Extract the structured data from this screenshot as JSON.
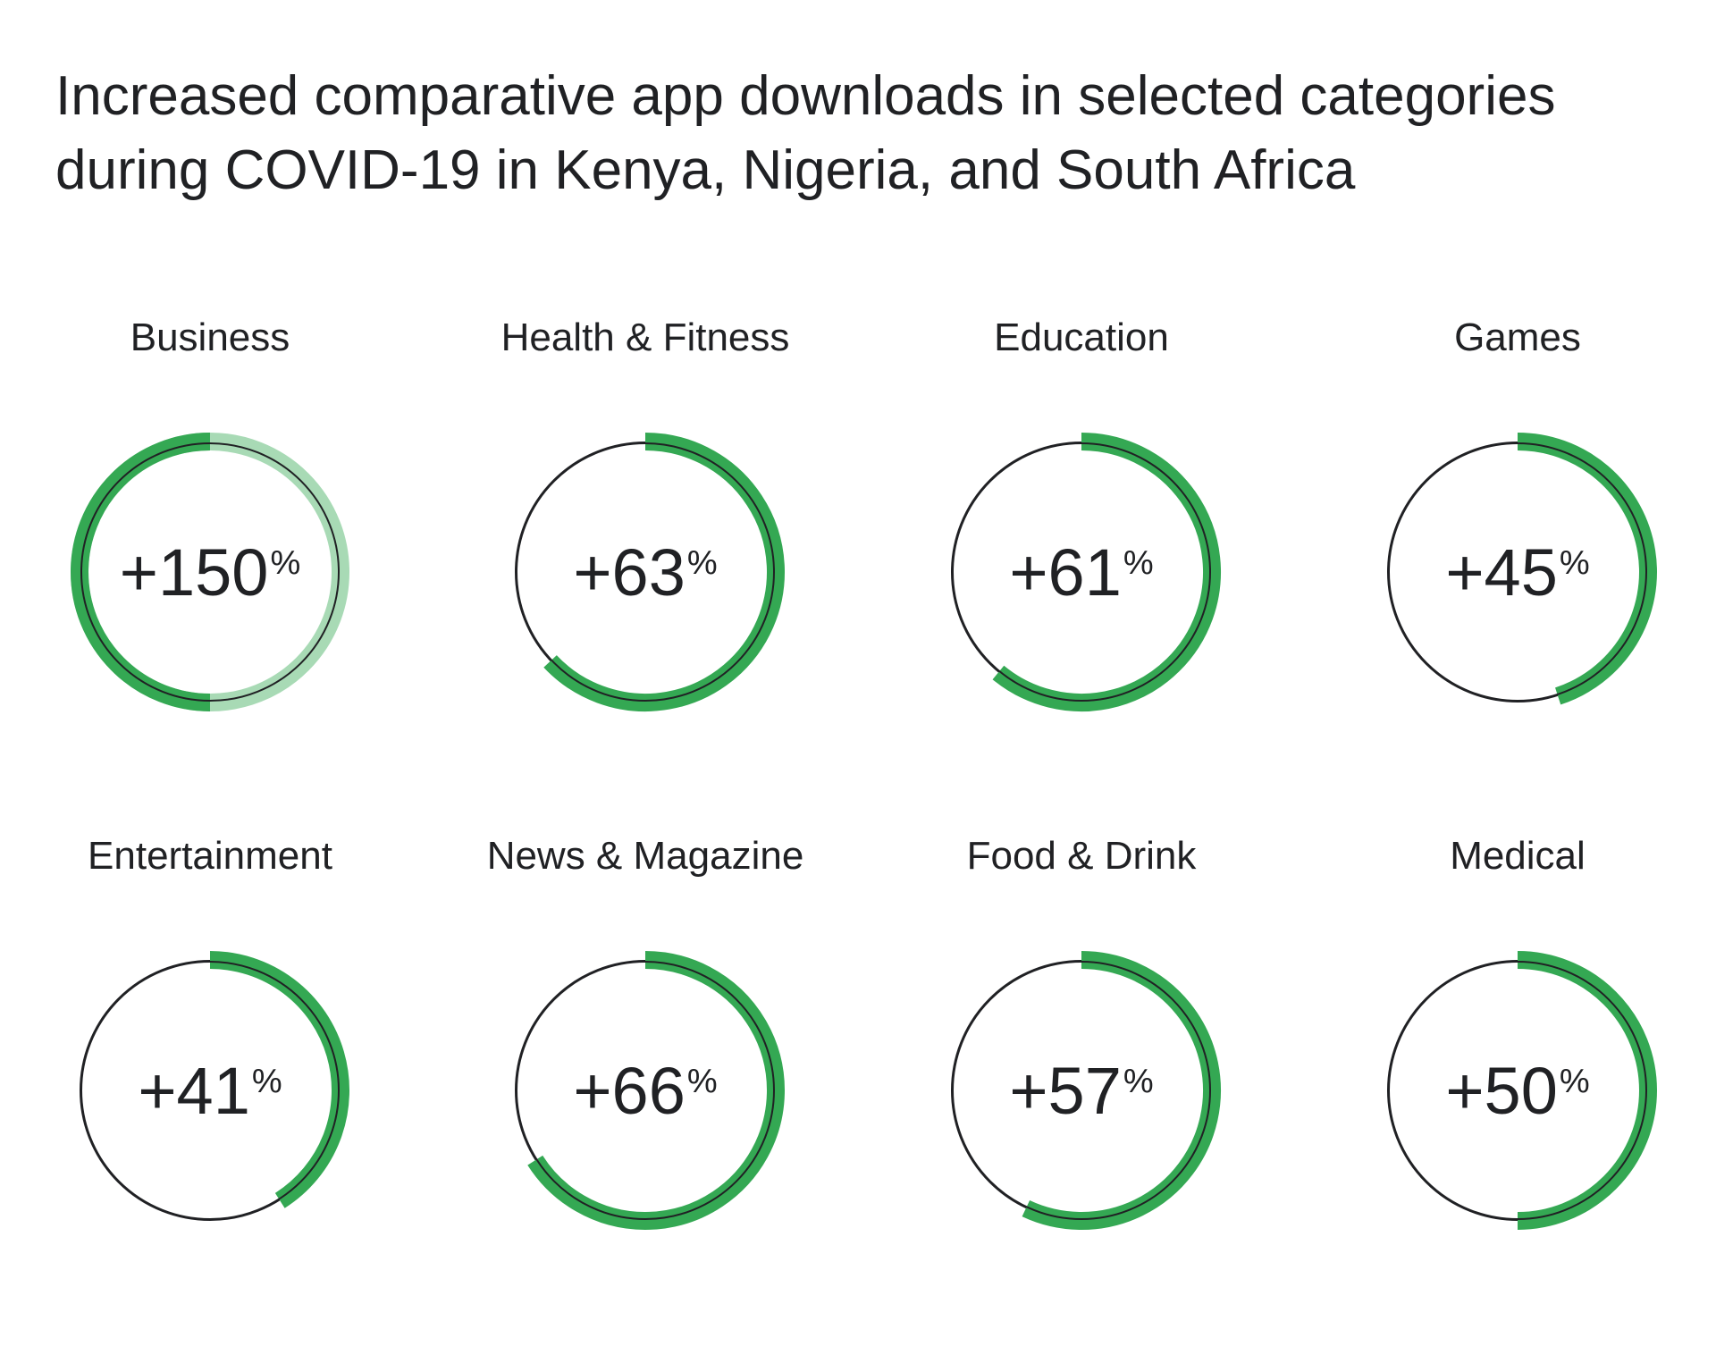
{
  "title_lines": [
    "Increased comparative app downloads in selected categories",
    "during COVID-19 in Kenya, Nigeria, and South Africa"
  ],
  "colors": {
    "accent": "#34a853",
    "accent_light": "#a8dab5",
    "outline": "#202124"
  },
  "chart_data": {
    "type": "radial-progress",
    "title": "Increased comparative app downloads in selected categories during COVID-19 in Kenya, Nigeria, and South Africa",
    "unit": "%",
    "categories": [
      "Business",
      "Health & Fitness",
      "Education",
      "Games",
      "Entertainment",
      "News & Magazine",
      "Food & Drink",
      "Medical"
    ],
    "values": [
      150,
      63,
      61,
      45,
      41,
      66,
      57,
      50
    ],
    "labels": [
      "+150",
      "+63",
      "+61",
      "+45",
      "+41",
      "+66",
      "+57",
      "+50"
    ]
  }
}
